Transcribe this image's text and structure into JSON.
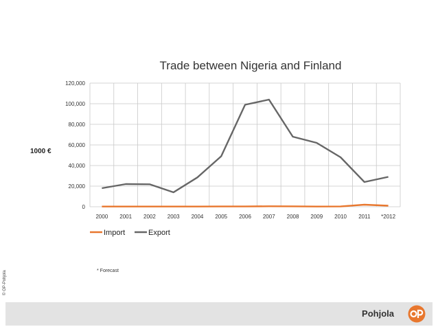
{
  "chart_data": {
    "type": "line",
    "title": "Trade between Nigeria and Finland",
    "ylabel": "1000 €",
    "categories": [
      "2000",
      "2001",
      "2002",
      "2003",
      "2004",
      "2005",
      "2006",
      "2007",
      "2008",
      "2009",
      "2010",
      "2011",
      "*2012"
    ],
    "ylim": [
      0,
      120000
    ],
    "yticks": [
      "0",
      "20,000",
      "40,000",
      "60,000",
      "80,000",
      "100,000",
      "120,000"
    ],
    "ytick_values": [
      0,
      20000,
      40000,
      60000,
      80000,
      100000,
      120000
    ],
    "grid": true,
    "legend_position": "bottom-left",
    "series": [
      {
        "name": "Import",
        "color": "#e8772e",
        "values": [
          200,
          200,
          200,
          200,
          200,
          300,
          300,
          500,
          400,
          200,
          300,
          2000,
          1000
        ]
      },
      {
        "name": "Export",
        "color": "#666666",
        "values": [
          18000,
          22000,
          21800,
          14000,
          28500,
          49000,
          99000,
          104000,
          68000,
          62000,
          48000,
          24000,
          29000
        ]
      }
    ]
  },
  "footnote": "* Forecast",
  "copyright": "© OP-Pohjola",
  "brand": {
    "name": "Pohjola",
    "logo_color": "#e8772e"
  }
}
